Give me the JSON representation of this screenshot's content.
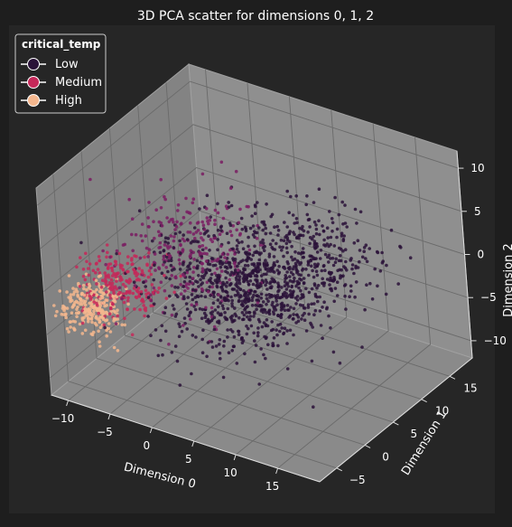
{
  "chart_data": {
    "type": "scatter",
    "title": "3D PCA scatter for dimensions 0, 1, 2",
    "xlabel": "Dimension 0",
    "ylabel": "Dimension 1",
    "zlabel": "Dimension 2",
    "xlim": [
      -12,
      20
    ],
    "ylim": [
      -8,
      19
    ],
    "zlim": [
      -12,
      12
    ],
    "x_ticks": [
      "−10",
      "−5",
      "0",
      "5",
      "10",
      "15"
    ],
    "y_ticks": [
      "−5",
      "0",
      "5",
      "10",
      "15"
    ],
    "z_ticks": [
      "−10",
      "−5",
      "0",
      "5",
      "10"
    ],
    "grid": true,
    "legend": {
      "title": "critical_temp",
      "placement": "top-left",
      "entries": [
        {
          "label": "Low",
          "color": "#2a1238"
        },
        {
          "label": "Medium",
          "color": "#c52859"
        },
        {
          "label": "High",
          "color": "#f5b78e"
        }
      ]
    },
    "clusters": [
      {
        "label": "Low",
        "color": "#2a1238",
        "center": [
          4,
          4,
          -1
        ],
        "spread": [
          4.5,
          4.0,
          2.6
        ],
        "count": 900
      },
      {
        "label": "Low",
        "color": "#2a1238",
        "center": [
          9,
          9,
          2
        ],
        "spread": [
          4.0,
          2.5,
          2.5
        ],
        "count": 250
      },
      {
        "label": "Medium",
        "color": "#7a1d63",
        "center": [
          -2,
          3,
          2
        ],
        "spread": [
          3.0,
          3.5,
          3.0
        ],
        "count": 260
      },
      {
        "label": "Medium",
        "color": "#c52859",
        "center": [
          -7,
          -2,
          -1
        ],
        "spread": [
          2.2,
          2.0,
          1.5
        ],
        "count": 220
      },
      {
        "label": "High",
        "color": "#f5b78e",
        "center": [
          -9,
          -4,
          -3
        ],
        "spread": [
          1.6,
          1.5,
          1.2
        ],
        "count": 260
      }
    ]
  }
}
